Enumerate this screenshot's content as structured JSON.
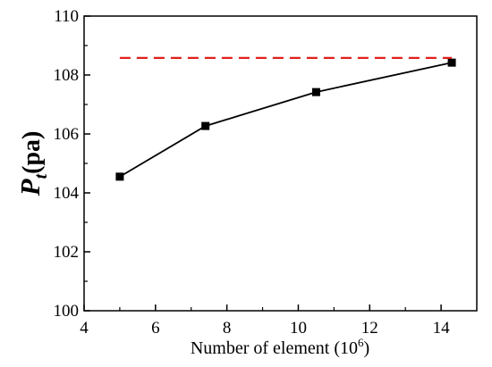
{
  "chart_data": {
    "type": "line",
    "title": "",
    "xlabel": "Number of element (10",
    "xlabel_sup": "6",
    "xlabel_end": ")",
    "ylabel_main": "P",
    "ylabel_sub": "t",
    "ylabel_rest": "(pa)",
    "xlim": [
      4,
      15
    ],
    "ylim": [
      100,
      110
    ],
    "xticks": [
      4,
      6,
      8,
      10,
      12,
      14
    ],
    "yticks": [
      100,
      102,
      104,
      106,
      108,
      110
    ],
    "grid": false,
    "series": [
      {
        "x": [
          5.0,
          7.4,
          10.5,
          14.3
        ],
        "y": [
          104.55,
          106.27,
          107.42,
          108.42
        ],
        "color": "#000000",
        "marker": "square",
        "line_style": "solid"
      },
      {
        "x": [
          5.0,
          14.3
        ],
        "y": [
          108.58,
          108.58
        ],
        "color": "#e0201b",
        "marker": "none",
        "line_style": "dashed"
      }
    ]
  }
}
